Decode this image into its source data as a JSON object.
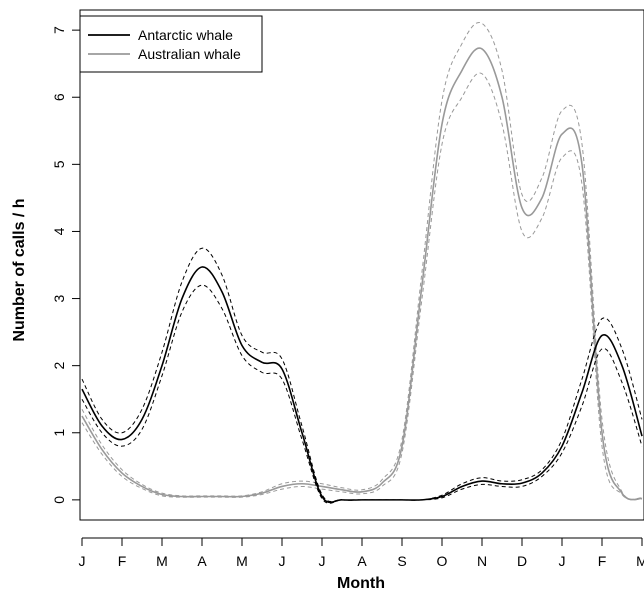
{
  "chart_data": {
    "type": "line",
    "xlabel": "Month",
    "ylabel": "Number of calls / h",
    "x_ticks": [
      "J",
      "F",
      "M",
      "A",
      "M",
      "J",
      "J",
      "A",
      "S",
      "O",
      "N",
      "D",
      "J",
      "F",
      "M"
    ],
    "y_ticks": [
      0,
      1,
      2,
      3,
      4,
      5,
      6,
      7
    ],
    "ylim": [
      -0.3,
      7.3
    ],
    "xlim": [
      -0.05,
      14.05
    ],
    "legend_position": "top-left",
    "colors": {
      "antarctic": "#000000",
      "australian": "#999999"
    },
    "series": [
      {
        "name": "Antarctic whale",
        "color": "#000000",
        "x": [
          0,
          0.5,
          1,
          1.5,
          2,
          2.5,
          3,
          3.5,
          4,
          4.5,
          5,
          5.5,
          6,
          6.5,
          7,
          7.5,
          8,
          8.5,
          9,
          9.5,
          10,
          10.5,
          11,
          11.5,
          12,
          12.5,
          13,
          13.5,
          14
        ],
        "y": [
          1.65,
          1.1,
          0.9,
          1.2,
          2.0,
          3.0,
          3.47,
          3.1,
          2.3,
          2.05,
          1.95,
          1.0,
          0.05,
          0.0,
          0.0,
          0.0,
          0.0,
          0.0,
          0.05,
          0.2,
          0.28,
          0.24,
          0.25,
          0.4,
          0.8,
          1.6,
          2.45,
          2.0,
          0.95
        ],
        "upper": [
          1.8,
          1.2,
          1.0,
          1.35,
          2.2,
          3.25,
          3.75,
          3.35,
          2.45,
          2.2,
          2.1,
          1.1,
          0.08,
          0.0,
          0.0,
          0.0,
          0.0,
          0.0,
          0.07,
          0.24,
          0.33,
          0.28,
          0.3,
          0.45,
          0.9,
          1.8,
          2.7,
          2.25,
          1.2
        ],
        "lower": [
          1.5,
          1.0,
          0.8,
          1.05,
          1.85,
          2.8,
          3.2,
          2.85,
          2.15,
          1.9,
          1.8,
          0.9,
          0.02,
          0.0,
          0.0,
          0.0,
          0.0,
          0.0,
          0.03,
          0.16,
          0.23,
          0.2,
          0.2,
          0.35,
          0.7,
          1.4,
          2.25,
          1.75,
          0.8
        ]
      },
      {
        "name": "Australian whale",
        "color": "#999999",
        "x": [
          0,
          0.5,
          1,
          1.5,
          2,
          2.5,
          3,
          3.5,
          4,
          4.5,
          5,
          5.5,
          6,
          6.5,
          7,
          7.5,
          8,
          8.5,
          9,
          9.5,
          10,
          10.5,
          11,
          11.5,
          12,
          12.5,
          13,
          13.5,
          14
        ],
        "y": [
          1.25,
          0.75,
          0.4,
          0.2,
          0.08,
          0.05,
          0.05,
          0.05,
          0.05,
          0.1,
          0.2,
          0.24,
          0.2,
          0.15,
          0.12,
          0.25,
          0.8,
          3.2,
          5.6,
          6.4,
          6.72,
          6.0,
          4.35,
          4.5,
          5.45,
          5.0,
          1.0,
          0.1,
          0.02
        ],
        "upper": [
          1.35,
          0.82,
          0.45,
          0.23,
          0.1,
          0.06,
          0.06,
          0.06,
          0.06,
          0.12,
          0.24,
          0.28,
          0.24,
          0.18,
          0.15,
          0.3,
          0.9,
          3.4,
          5.95,
          6.8,
          7.1,
          6.4,
          4.55,
          4.8,
          5.8,
          5.3,
          1.2,
          0.12,
          0.03
        ],
        "lower": [
          1.15,
          0.68,
          0.35,
          0.17,
          0.06,
          0.04,
          0.04,
          0.04,
          0.04,
          0.08,
          0.16,
          0.2,
          0.16,
          0.12,
          0.09,
          0.2,
          0.7,
          3.0,
          5.3,
          6.0,
          6.35,
          5.6,
          4.0,
          4.2,
          5.1,
          4.7,
          0.8,
          0.08,
          0.01
        ]
      }
    ]
  }
}
